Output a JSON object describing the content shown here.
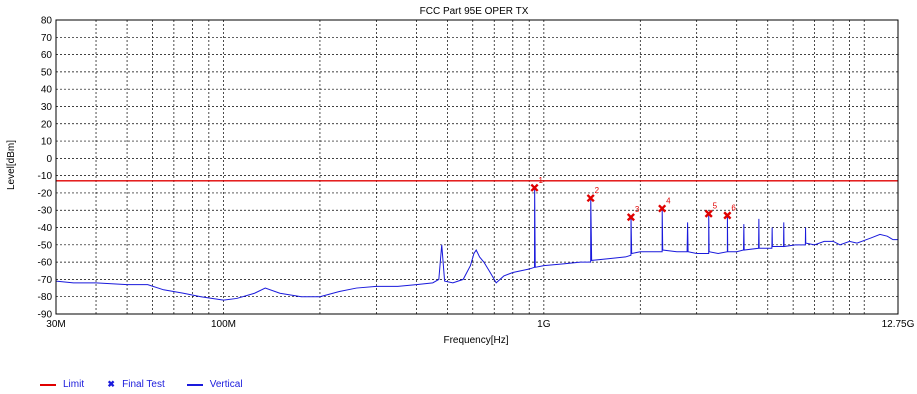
{
  "chart_data": {
    "type": "line",
    "title": "FCC Part 95E OPER TX",
    "xlabel": "Frequency[Hz]",
    "ylabel": "Level[dBm]",
    "x_scale": "log",
    "xlim": [
      30000000,
      12750000000
    ],
    "ylim": [
      -90,
      80
    ],
    "x_tick_labels": [
      {
        "value": 30000000,
        "label": "30M"
      },
      {
        "value": 100000000,
        "label": "100M"
      },
      {
        "value": 1000000000,
        "label": "1G"
      },
      {
        "value": 12750000000,
        "label": "12.75G"
      }
    ],
    "y_ticks": [
      80,
      70,
      60,
      50,
      40,
      30,
      20,
      10,
      0,
      -10,
      -20,
      -30,
      -40,
      -50,
      -60,
      -70,
      -80,
      -90
    ],
    "grid": true,
    "legend_position": "bottom-left",
    "series": [
      {
        "name": "Limit",
        "color": "#e00000",
        "style": "line",
        "points": [
          [
            30000000,
            -13
          ],
          [
            12750000000,
            -13
          ]
        ]
      },
      {
        "name": "Final Test",
        "color": "#e00000",
        "style": "marker",
        "points": [
          {
            "label": "1",
            "x": 935000000,
            "y": -17
          },
          {
            "label": "2",
            "x": 1400000000,
            "y": -23
          },
          {
            "label": "3",
            "x": 1870000000,
            "y": -34
          },
          {
            "label": "4",
            "x": 2340000000,
            "y": -29
          },
          {
            "label": "5",
            "x": 3270000000,
            "y": -32
          },
          {
            "label": "6",
            "x": 3740000000,
            "y": -33
          }
        ]
      },
      {
        "name": "Vertical",
        "color": "#1a1adc",
        "style": "line",
        "points": [
          [
            30000000,
            -71
          ],
          [
            34000000,
            -72
          ],
          [
            40000000,
            -72
          ],
          [
            50000000,
            -73
          ],
          [
            58000000,
            -73
          ],
          [
            65000000,
            -76
          ],
          [
            75000000,
            -78
          ],
          [
            85000000,
            -80
          ],
          [
            100000000,
            -82
          ],
          [
            110000000,
            -81
          ],
          [
            125000000,
            -78
          ],
          [
            135000000,
            -75
          ],
          [
            150000000,
            -78
          ],
          [
            175000000,
            -80
          ],
          [
            200000000,
            -80
          ],
          [
            230000000,
            -77
          ],
          [
            260000000,
            -75
          ],
          [
            300000000,
            -74
          ],
          [
            350000000,
            -74
          ],
          [
            400000000,
            -73
          ],
          [
            450000000,
            -72
          ],
          [
            470000000,
            -70
          ],
          [
            480000000,
            -50
          ],
          [
            490000000,
            -71
          ],
          [
            520000000,
            -72
          ],
          [
            560000000,
            -70
          ],
          [
            590000000,
            -62
          ],
          [
            605000000,
            -55
          ],
          [
            615000000,
            -53
          ],
          [
            630000000,
            -57
          ],
          [
            650000000,
            -60
          ],
          [
            680000000,
            -66
          ],
          [
            710000000,
            -72
          ],
          [
            750000000,
            -68
          ],
          [
            800000000,
            -66
          ],
          [
            900000000,
            -64
          ],
          [
            935000000,
            -63
          ],
          [
            936000000,
            -17
          ],
          [
            940000000,
            -63
          ],
          [
            1000000000,
            -62
          ],
          [
            1150000000,
            -61
          ],
          [
            1300000000,
            -60
          ],
          [
            1400000000,
            -60
          ],
          [
            1401000000,
            -23
          ],
          [
            1410000000,
            -59
          ],
          [
            1600000000,
            -58
          ],
          [
            1800000000,
            -57
          ],
          [
            1870000000,
            -56
          ],
          [
            1871000000,
            -34
          ],
          [
            1880000000,
            -55
          ],
          [
            2000000000,
            -54
          ],
          [
            2200000000,
            -54
          ],
          [
            2340000000,
            -54
          ],
          [
            2341000000,
            -29
          ],
          [
            2350000000,
            -53
          ],
          [
            2600000000,
            -54
          ],
          [
            2800000000,
            -54
          ],
          [
            2810000000,
            -37
          ],
          [
            2820000000,
            -54
          ],
          [
            3000000000,
            -55
          ],
          [
            3270000000,
            -55
          ],
          [
            3271000000,
            -32
          ],
          [
            3280000000,
            -54
          ],
          [
            3500000000,
            -55
          ],
          [
            3740000000,
            -54
          ],
          [
            3741000000,
            -33
          ],
          [
            3750000000,
            -54
          ],
          [
            4000000000,
            -54
          ],
          [
            4200000000,
            -53
          ],
          [
            4210000000,
            -38
          ],
          [
            4220000000,
            -53
          ],
          [
            4680000000,
            -52
          ],
          [
            4690000000,
            -35
          ],
          [
            4700000000,
            -52
          ],
          [
            5150000000,
            -52
          ],
          [
            5160000000,
            -40
          ],
          [
            5170000000,
            -51
          ],
          [
            5600000000,
            -51
          ],
          [
            5610000000,
            -37
          ],
          [
            5620000000,
            -51
          ],
          [
            6100000000,
            -50
          ],
          [
            6550000000,
            -50
          ],
          [
            6560000000,
            -40
          ],
          [
            6570000000,
            -49
          ],
          [
            7000000000,
            -50
          ],
          [
            7500000000,
            -48
          ],
          [
            8000000000,
            -48
          ],
          [
            8400000000,
            -50
          ],
          [
            9000000000,
            -48
          ],
          [
            9500000000,
            -49
          ],
          [
            10500000000,
            -46
          ],
          [
            11200000000,
            -44
          ],
          [
            11800000000,
            -45
          ],
          [
            12300000000,
            -47
          ],
          [
            12750000000,
            -47
          ]
        ]
      }
    ]
  }
}
